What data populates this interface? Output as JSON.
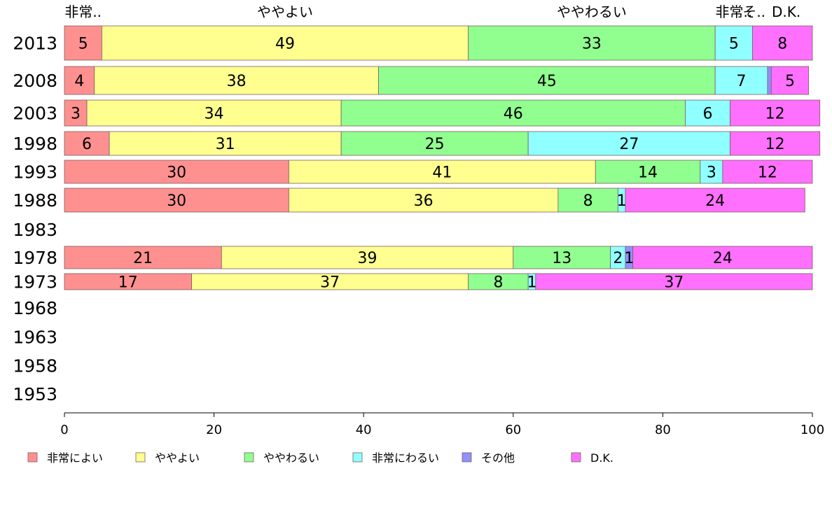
{
  "chart_data": {
    "type": "bar",
    "orientation": "horizontal",
    "stacked": true,
    "categories": [
      "2013",
      "2008",
      "2003",
      "1998",
      "1993",
      "1988",
      "1983",
      "1978",
      "1973",
      "1968",
      "1963",
      "1958",
      "1953"
    ],
    "series": [
      {
        "name": "非常によい",
        "color": "#ff9090",
        "values": [
          5,
          4,
          3,
          6,
          30,
          30,
          null,
          21,
          17,
          null,
          null,
          null,
          null
        ]
      },
      {
        "name": "ややよい",
        "color": "#ffff90",
        "values": [
          49,
          38,
          34,
          31,
          41,
          36,
          null,
          39,
          37,
          null,
          null,
          null,
          null
        ]
      },
      {
        "name": "ややわるい",
        "color": "#90ff90",
        "values": [
          33,
          45,
          46,
          25,
          14,
          8,
          null,
          13,
          8,
          null,
          null,
          null,
          null
        ]
      },
      {
        "name": "非常にわるい",
        "color": "#90ffff",
        "values": [
          5,
          7,
          6,
          27,
          3,
          1,
          null,
          2,
          1,
          null,
          null,
          null,
          null
        ]
      },
      {
        "name": "その他",
        "color": "#9090ff",
        "values": [
          0,
          0.5,
          0,
          0,
          0,
          0,
          null,
          1,
          0,
          null,
          null,
          null,
          null
        ]
      },
      {
        "name": "D.K.",
        "color": "#ff70ff",
        "values": [
          8,
          5,
          12,
          12,
          12,
          24,
          null,
          24,
          37,
          null,
          null,
          null,
          null
        ]
      }
    ],
    "data_labels": [
      [
        "5",
        "49",
        "33",
        "5",
        "",
        "8"
      ],
      [
        "4",
        "38",
        "45",
        "7",
        "",
        "5"
      ],
      [
        "3",
        "34",
        "46",
        "6",
        "",
        "12"
      ],
      [
        "6",
        "31",
        "25",
        "27",
        "",
        "12"
      ],
      [
        "30",
        "41",
        "14",
        "3",
        "",
        "12"
      ],
      [
        "30",
        "36",
        "8",
        "1",
        "",
        "24"
      ],
      [
        "",
        "",
        "",
        "",
        "",
        ""
      ],
      [
        "21",
        "39",
        "13",
        "2",
        "1",
        "24"
      ],
      [
        "17",
        "37",
        "8",
        "1",
        "",
        "37"
      ],
      [
        "",
        "",
        "",
        "",
        "",
        ""
      ],
      [
        "",
        "",
        "",
        "",
        "",
        ""
      ],
      [
        "",
        "",
        "",
        "",
        "",
        ""
      ],
      [
        "",
        "",
        "",
        "",
        "",
        ""
      ]
    ],
    "top_labels": [
      {
        "text": "非常..",
        "at": 2.5
      },
      {
        "text": "ややよい",
        "at": 29.5
      },
      {
        "text": "ややわるい",
        "at": 70.5
      },
      {
        "text": "非常..",
        "at": 89.5
      },
      {
        "text": "そ..",
        "at": 92.2
      },
      {
        "text": "D.K.",
        "at": 96.5
      }
    ],
    "xlim": [
      0,
      100
    ],
    "xticks": [
      0,
      20,
      40,
      60,
      80,
      100
    ],
    "grid": false,
    "legend_position": "bottom"
  }
}
